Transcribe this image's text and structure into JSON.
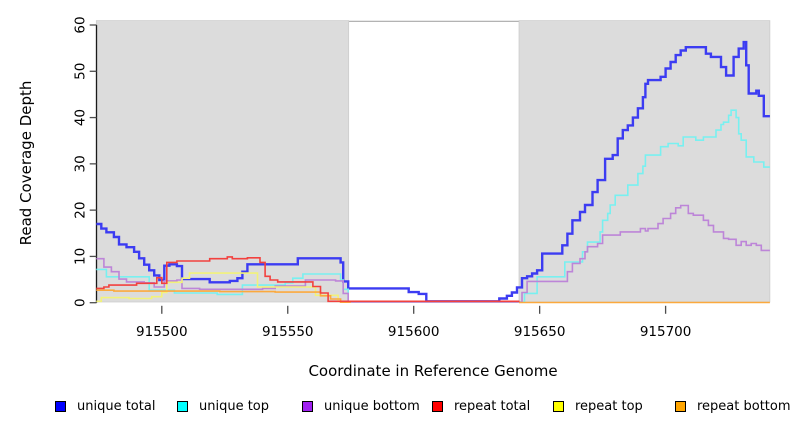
{
  "figure": {
    "background": "#ffffff",
    "plot_bg_shade": "#dcdcdc"
  },
  "chart_data": {
    "type": "line",
    "step": "after",
    "title": "",
    "xlabel": "Coordinate in Reference Genome",
    "ylabel": "Read Coverage Depth",
    "xlim": [
      915474,
      915741
    ],
    "ylim": [
      0,
      60
    ],
    "grid": false,
    "legend_position": "bottom",
    "x_ticks": [
      {
        "v": 915500,
        "label": "915500"
      },
      {
        "v": 915550,
        "label": "915550"
      },
      {
        "v": 915600,
        "label": "915600"
      },
      {
        "v": 915650,
        "label": "915650"
      },
      {
        "v": 915700,
        "label": "915700"
      }
    ],
    "y_ticks": [
      {
        "v": 0,
        "label": "0"
      },
      {
        "v": 10,
        "label": "10"
      },
      {
        "v": 20,
        "label": "20"
      },
      {
        "v": 30,
        "label": "30"
      },
      {
        "v": 40,
        "label": "40"
      },
      {
        "v": 50,
        "label": "50"
      },
      {
        "v": 60,
        "label": "60"
      }
    ],
    "shaded_regions": [
      {
        "x0": 915474,
        "x1": 915574.2,
        "color": "#dcdcdc"
      },
      {
        "x0": 915641.8,
        "x1": 915741.4,
        "color": "#dcdcdc"
      }
    ],
    "series": [
      {
        "name": "unique total",
        "line_color": "#3c3cf2",
        "legend_color": "#0000ff",
        "line_width": 2.4,
        "segments": [
          [
            [
              915474,
              17
            ],
            [
              915476,
              16
            ],
            [
              915478,
              15.2
            ],
            [
              915481,
              14.2
            ],
            [
              915483,
              12.6
            ],
            [
              915486,
              12
            ],
            [
              915489,
              11
            ],
            [
              915491,
              9.6
            ],
            [
              915493,
              8.2
            ],
            [
              915495,
              7
            ],
            [
              915497,
              5.9
            ],
            [
              915499,
              4.9
            ],
            [
              915501,
              8
            ],
            [
              915503,
              8.3
            ],
            [
              915506,
              7.9
            ],
            [
              915508,
              5.1
            ],
            [
              915519,
              4.4
            ],
            [
              915527,
              4.7
            ],
            [
              915530,
              5.3
            ],
            [
              915532,
              6.7
            ],
            [
              915534,
              8.3
            ],
            [
              915554,
              9.6
            ],
            [
              915571,
              8.7
            ],
            [
              915572,
              4.6
            ],
            [
              915574,
              3.1
            ],
            [
              915598,
              2.3
            ],
            [
              915602,
              1.9
            ],
            [
              915605,
              0.3
            ],
            [
              915634,
              0.9
            ],
            [
              915637,
              1.5
            ],
            [
              915639,
              2.2
            ],
            [
              915641,
              3.3
            ],
            [
              915643,
              5.3
            ],
            [
              915645,
              5.7
            ],
            [
              915647,
              6.3
            ],
            [
              915649,
              7
            ],
            [
              915651,
              10.6
            ],
            [
              915659,
              12.4
            ],
            [
              915661,
              14.9
            ],
            [
              915663,
              17.8
            ],
            [
              915666,
              19.6
            ],
            [
              915668,
              21.1
            ],
            [
              915671,
              23.9
            ],
            [
              915673,
              26.5
            ],
            [
              915676,
              31.1
            ],
            [
              915679,
              31.9
            ],
            [
              915681,
              35.5
            ],
            [
              915683,
              37.3
            ],
            [
              915685,
              38.3
            ],
            [
              915687,
              40
            ],
            [
              915689,
              42
            ],
            [
              915691,
              44.4
            ],
            [
              915692,
              47.3
            ],
            [
              915693,
              48.1
            ],
            [
              915698,
              48.8
            ],
            [
              915700,
              50.6
            ],
            [
              915702,
              52
            ],
            [
              915704,
              53.5
            ],
            [
              915706,
              54.5
            ],
            [
              915708,
              55.2
            ],
            [
              915716,
              53.8
            ],
            [
              915718,
              53.1
            ],
            [
              915722,
              50.9
            ],
            [
              915724,
              49.1
            ],
            [
              915727,
              53.1
            ],
            [
              915729,
              54.9
            ],
            [
              915731,
              56.3
            ],
            [
              915732,
              51.3
            ],
            [
              915733,
              45.2
            ],
            [
              915736,
              45.8
            ],
            [
              915737,
              44.7
            ],
            [
              915739,
              40.3
            ],
            [
              915741.4,
              40.3
            ]
          ]
        ]
      },
      {
        "name": "unique top",
        "line_color": "#78f0f0",
        "legend_color": "#00ffff",
        "line_width": 1.6,
        "segments": [
          [
            [
              915474,
              7.2
            ],
            [
              915478,
              5.6
            ],
            [
              915495,
              2.7
            ],
            [
              915505,
              2.1
            ],
            [
              915522,
              1.8
            ],
            [
              915532,
              3.8
            ],
            [
              915549,
              4.3
            ],
            [
              915552,
              5.3
            ],
            [
              915556,
              6.2
            ],
            [
              915571,
              4.9
            ],
            [
              915572,
              2.9
            ],
            [
              915574,
              0.15
            ],
            [
              915644,
              2
            ],
            [
              915649,
              5.6
            ],
            [
              915660,
              8.8
            ],
            [
              915667,
              11
            ],
            [
              915669,
              13.1
            ],
            [
              915674,
              15.3
            ],
            [
              915675,
              17.8
            ],
            [
              915677,
              19.3
            ],
            [
              915678,
              21.1
            ],
            [
              915680,
              23.2
            ],
            [
              915685,
              25.4
            ],
            [
              915689,
              27.9
            ],
            [
              915691,
              29.5
            ],
            [
              915692,
              31.9
            ],
            [
              915698,
              33.7
            ],
            [
              915701,
              34.4
            ],
            [
              915705,
              33.9
            ],
            [
              915707,
              35.8
            ],
            [
              915712,
              35.1
            ],
            [
              915715,
              35.8
            ],
            [
              915720,
              37.3
            ],
            [
              915722,
              38.5
            ],
            [
              915723,
              39
            ],
            [
              915725,
              40.5
            ],
            [
              915726,
              41.6
            ],
            [
              915728,
              40
            ],
            [
              915729,
              36.5
            ],
            [
              915730,
              35.1
            ],
            [
              915732,
              31.5
            ],
            [
              915735,
              30.4
            ],
            [
              915739,
              29.3
            ],
            [
              915741.4,
              29.3
            ]
          ]
        ]
      },
      {
        "name": "unique bottom",
        "line_color": "#bd85d8",
        "legend_color": "#a020f0",
        "line_width": 1.6,
        "segments": [
          [
            [
              915474,
              9.5
            ],
            [
              915477,
              7.7
            ],
            [
              915480,
              6.7
            ],
            [
              915483,
              5.1
            ],
            [
              915486,
              4.5
            ],
            [
              915493,
              4.3
            ],
            [
              915497,
              3.4
            ],
            [
              915501,
              4.7
            ],
            [
              915506,
              4.9
            ],
            [
              915508,
              3.1
            ],
            [
              915515,
              2.9
            ],
            [
              915540,
              3.1
            ],
            [
              915545,
              3.6
            ],
            [
              915557,
              4.9
            ],
            [
              915569,
              4.7
            ],
            [
              915572,
              2
            ],
            [
              915574,
              0.15
            ],
            [
              915643,
              2.2
            ],
            [
              915645,
              4.6
            ],
            [
              915661,
              6.7
            ],
            [
              915663,
              8.5
            ],
            [
              915666,
              9.5
            ],
            [
              915668,
              11
            ],
            [
              915669,
              12.1
            ],
            [
              915673,
              12.8
            ],
            [
              915675,
              14.6
            ],
            [
              915682,
              15.3
            ],
            [
              915690,
              16
            ],
            [
              915692,
              15.5
            ],
            [
              915693,
              16
            ],
            [
              915697,
              17.1
            ],
            [
              915699,
              18.2
            ],
            [
              915702,
              19.3
            ],
            [
              915704,
              20.5
            ],
            [
              915706,
              21
            ],
            [
              915709,
              19.3
            ],
            [
              915711,
              18.9
            ],
            [
              915715,
              17.8
            ],
            [
              915717,
              16.7
            ],
            [
              915719,
              15.3
            ],
            [
              915723,
              13.9
            ],
            [
              915725,
              13.7
            ],
            [
              915728,
              12.4
            ],
            [
              915730,
              13.2
            ],
            [
              915732,
              12.4
            ],
            [
              915734,
              12.8
            ],
            [
              915736,
              12.4
            ],
            [
              915738,
              11.3
            ],
            [
              915741.4,
              11.3
            ]
          ]
        ]
      },
      {
        "name": "repeat top",
        "line_color": "#f2f27a",
        "legend_color": "#ffff00",
        "line_width": 1.6,
        "segments": [
          [
            [
              915474,
              0.3
            ],
            [
              915476,
              1.1
            ],
            [
              915487,
              0.9
            ],
            [
              915496,
              1.3
            ],
            [
              915500,
              2.2
            ],
            [
              915502,
              4.4
            ],
            [
              915508,
              5.3
            ],
            [
              915511,
              6.4
            ],
            [
              915538,
              3.4
            ],
            [
              915561,
              1.6
            ],
            [
              915570,
              0.3
            ],
            [
              915574,
              0.3
            ]
          ]
        ]
      },
      {
        "name": "repeat bottom",
        "line_color": "#fba93e",
        "legend_color": "#ffa500",
        "line_width": 1.6,
        "segments": [
          [
            [
              915474,
              2.7
            ],
            [
              915481,
              2.5
            ],
            [
              915523,
              2.4
            ],
            [
              915545,
              2.3
            ],
            [
              915563,
              1.5
            ],
            [
              915567,
              0.8
            ],
            [
              915571,
              0.1
            ],
            [
              915575,
              0.1
            ]
          ],
          [
            [
              915641.8,
              0.05
            ],
            [
              915741.4,
              0.05
            ]
          ]
        ]
      },
      {
        "name": "repeat total",
        "line_color": "#f2413e",
        "legend_color": "#ff0000",
        "line_width": 1.6,
        "segments": [
          [
            [
              915474,
              3.1
            ],
            [
              915477,
              3.4
            ],
            [
              915479,
              3.8
            ],
            [
              915490,
              4.2
            ],
            [
              915498,
              5.4
            ],
            [
              915500,
              4.2
            ],
            [
              915502,
              8.7
            ],
            [
              915506,
              9
            ],
            [
              915519,
              9.5
            ],
            [
              915526,
              9.9
            ],
            [
              915528,
              9.5
            ],
            [
              915534,
              9.7
            ],
            [
              915539,
              8.7
            ],
            [
              915541,
              5.7
            ],
            [
              915543,
              4.9
            ],
            [
              915546,
              4.5
            ],
            [
              915560,
              3.5
            ],
            [
              915563,
              2.1
            ],
            [
              915566,
              0.3
            ],
            [
              915642,
              0.3
            ]
          ]
        ]
      }
    ]
  },
  "legend": {
    "items": [
      {
        "label": "unique total",
        "color": "#0000ff"
      },
      {
        "label": "unique top",
        "color": "#00ffff"
      },
      {
        "label": "unique bottom",
        "color": "#a020f0"
      },
      {
        "label": "repeat total",
        "color": "#ff0000"
      },
      {
        "label": "repeat top",
        "color": "#ffff00"
      },
      {
        "label": "repeat bottom",
        "color": "#ffa500"
      }
    ]
  }
}
